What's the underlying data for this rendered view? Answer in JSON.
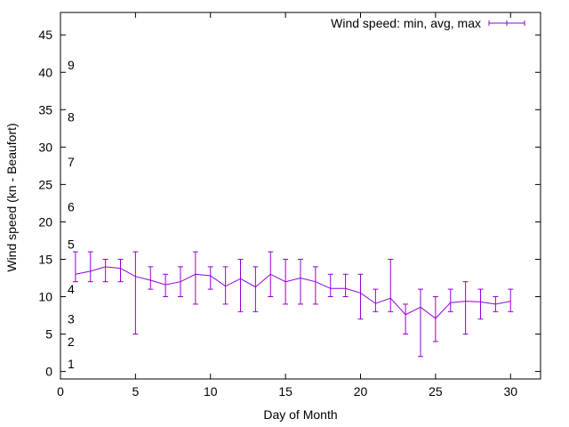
{
  "chart_data": {
    "type": "line",
    "xlabel": "Day of Month",
    "ylabel": "Wind speed (kn - Beaufort)",
    "xlim": [
      0,
      32
    ],
    "ylim": [
      -1,
      48
    ],
    "xticks": [
      0,
      5,
      10,
      15,
      20,
      25,
      30
    ],
    "yticks": [
      0,
      5,
      10,
      15,
      20,
      25,
      30,
      35,
      40,
      45
    ],
    "grid": false,
    "legend_position": "top-right",
    "color": "#9400d3",
    "beaufort_labels": [
      {
        "label": "1",
        "y": 1
      },
      {
        "label": "2",
        "y": 4
      },
      {
        "label": "3",
        "y": 7
      },
      {
        "label": "4",
        "y": 11
      },
      {
        "label": "5",
        "y": 17
      },
      {
        "label": "6",
        "y": 22
      },
      {
        "label": "7",
        "y": 28
      },
      {
        "label": "8",
        "y": 34
      },
      {
        "label": "9",
        "y": 41
      }
    ],
    "series": [
      {
        "name": "Wind speed: min, avg, max",
        "x": [
          1,
          2,
          3,
          4,
          5,
          6,
          7,
          8,
          9,
          10,
          11,
          12,
          13,
          14,
          15,
          16,
          17,
          18,
          19,
          20,
          21,
          22,
          23,
          24,
          25,
          26,
          27,
          28,
          29,
          30
        ],
        "min": [
          12,
          12,
          12,
          12,
          5,
          11,
          10,
          10,
          9,
          11,
          9,
          8,
          8,
          10,
          9,
          9,
          9,
          10,
          10,
          7,
          8,
          8,
          5,
          2,
          4,
          8,
          5,
          7,
          8,
          8
        ],
        "avg": [
          13,
          13.4,
          14,
          13.8,
          12.7,
          12.2,
          11.6,
          12,
          13,
          12.8,
          11.4,
          12.4,
          11.3,
          13,
          12,
          12.5,
          12,
          11.1,
          11.1,
          10.5,
          9.1,
          9.8,
          7.6,
          8.6,
          7.1,
          9.2,
          9.4,
          9.3,
          9,
          9.4
        ],
        "max": [
          16,
          16,
          15,
          15,
          16,
          14,
          13,
          14,
          16,
          14,
          14,
          15,
          14,
          16,
          15,
          15,
          14,
          13,
          13,
          13,
          11,
          15,
          9,
          11,
          10,
          11,
          12,
          11,
          10,
          11
        ]
      }
    ]
  }
}
